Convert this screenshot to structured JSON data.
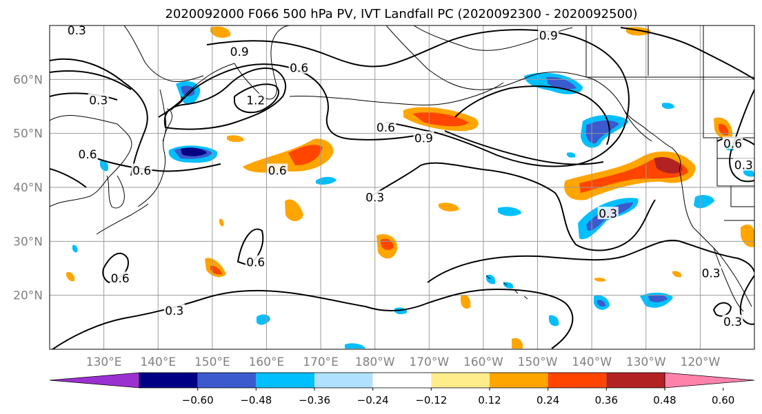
{
  "title": "2020092000 F066 500 hPa PV, IVT Landfall PC (2020092300 - 2020092500)",
  "map": {
    "lat_labels": [
      "60°N",
      "50°N",
      "40°N",
      "30°N",
      "20°N"
    ],
    "lon_labels": [
      "130°E",
      "140°E",
      "150°E",
      "160°E",
      "170°E",
      "180°W",
      "170°W",
      "160°W",
      "150°W",
      "140°W",
      "130°W",
      "120°W"
    ],
    "lat_values": [
      60,
      50,
      40,
      30,
      20
    ],
    "lon_values": [
      130,
      140,
      150,
      160,
      170,
      180,
      190,
      200,
      210,
      220,
      230,
      240
    ],
    "lon_range": [
      120,
      250
    ],
    "lat_range": [
      10,
      70
    ]
  },
  "contour_labels": [
    {
      "text": "0.3",
      "lon": 125,
      "lat": 69
    },
    {
      "text": "0.9",
      "lon": 155,
      "lat": 65
    },
    {
      "text": "0.6",
      "lon": 166,
      "lat": 62
    },
    {
      "text": "0.9",
      "lon": 212,
      "lat": 68
    },
    {
      "text": "0.3",
      "lon": 129,
      "lat": 56
    },
    {
      "text": "1.2",
      "lon": 158,
      "lat": 56
    },
    {
      "text": "0.6",
      "lon": 182,
      "lat": 51
    },
    {
      "text": "0.9",
      "lon": 189,
      "lat": 49
    },
    {
      "text": "0.6",
      "lon": 127,
      "lat": 46
    },
    {
      "text": "0.6",
      "lon": 137,
      "lat": 43
    },
    {
      "text": "0.6",
      "lon": 162,
      "lat": 43
    },
    {
      "text": "0.3",
      "lon": 180,
      "lat": 38
    },
    {
      "text": "0.3",
      "lon": 223,
      "lat": 35
    },
    {
      "text": "0.6",
      "lon": 158,
      "lat": 26
    },
    {
      "text": "0.6",
      "lon": 133,
      "lat": 23
    },
    {
      "text": "0.3",
      "lon": 143,
      "lat": 17
    },
    {
      "text": "0.3",
      "lon": 248,
      "lat": 44
    },
    {
      "text": "0.6",
      "lon": 246,
      "lat": 48
    },
    {
      "text": "0.3",
      "lon": 242,
      "lat": 24
    },
    {
      "text": "0.3",
      "lon": 246,
      "lat": 15
    }
  ],
  "colorbar": {
    "colors": [
      "#9b30d0",
      "#000085",
      "#3a5acd",
      "#00bfff",
      "#b0e2ff",
      "#ffffff",
      "#ffec8b",
      "#ffa500",
      "#ff4500",
      "#b22222",
      "#ff82ab"
    ],
    "tick_labels": [
      "−0.60",
      "−0.48",
      "−0.36",
      "−0.24",
      "−0.12",
      "0.12",
      "0.24",
      "0.36",
      "0.48",
      "0.60"
    ]
  }
}
